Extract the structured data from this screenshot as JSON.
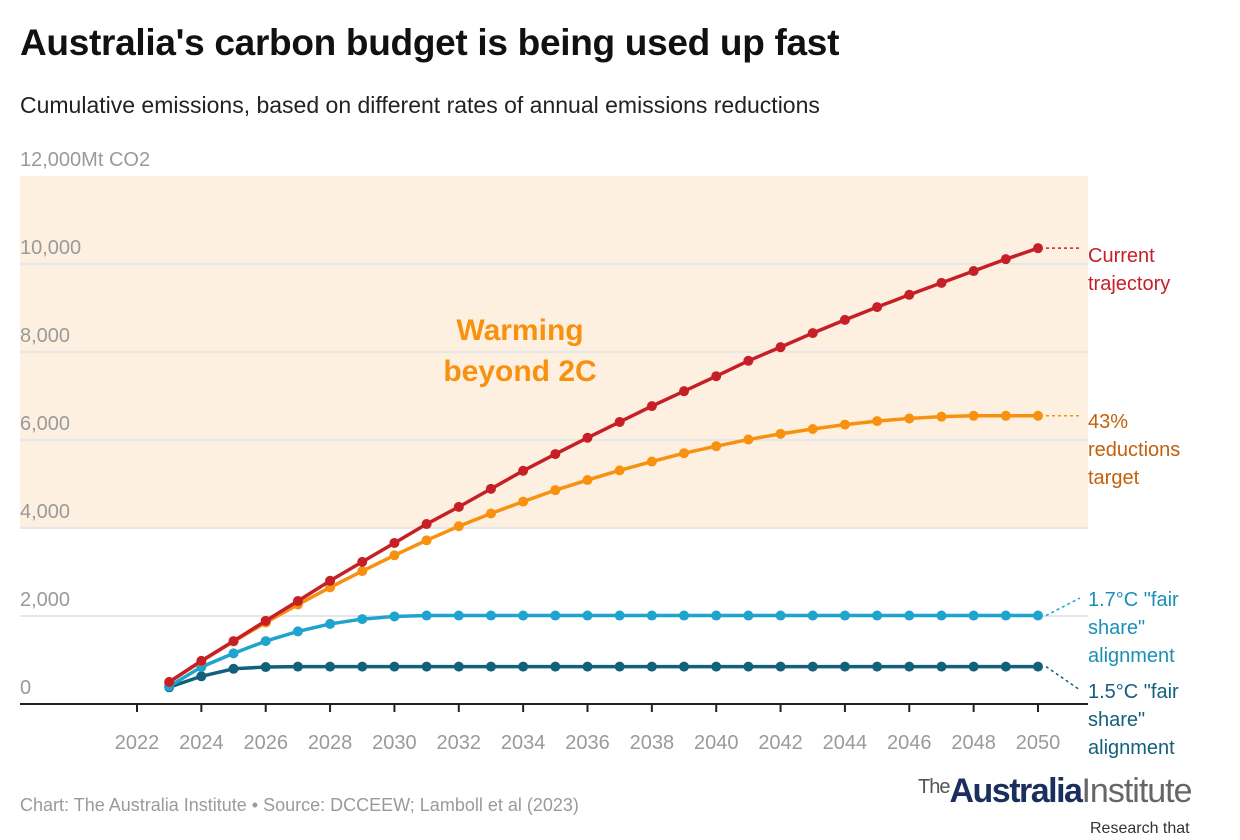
{
  "title": "Australia's carbon budget is being used up fast",
  "subtitle": "Cumulative emissions, based on different rates of annual emissions reductions",
  "source": "Chart: The Australia Institute • Source: DCCEEW; Lamboll et al (2023)",
  "logo": {
    "the": "The",
    "australia": "Australia",
    "institute": "Institute",
    "tagline": "Research that matters."
  },
  "chart_data": {
    "type": "line",
    "title": "Australia's carbon budget is being used up fast",
    "ylabel": "Mt CO2",
    "ylim": [
      0,
      12000
    ],
    "xlim": [
      2022,
      2050
    ],
    "grid": true,
    "y_ticks": [
      "0",
      "2,000",
      "4,000",
      "6,000",
      "8,000",
      "10,000",
      "12,000Mt CO2"
    ],
    "y_tick_values": [
      0,
      2000,
      4000,
      6000,
      8000,
      10000,
      12000
    ],
    "x_ticks": [
      2022,
      2024,
      2026,
      2028,
      2030,
      2032,
      2034,
      2036,
      2038,
      2040,
      2042,
      2044,
      2046,
      2048,
      2050
    ],
    "band": {
      "from": 4000,
      "to": 12000,
      "label": "Warming beyond 2C",
      "color": "#fdf0e1",
      "label_color": "#f7910f"
    },
    "x": [
      2023,
      2024,
      2025,
      2026,
      2027,
      2028,
      2029,
      2030,
      2031,
      2032,
      2033,
      2034,
      2035,
      2036,
      2037,
      2038,
      2039,
      2040,
      2041,
      2042,
      2043,
      2044,
      2045,
      2046,
      2047,
      2048,
      2049,
      2050
    ],
    "series": [
      {
        "name": "Current trajectory",
        "color": "#c62026",
        "label_color": "#c62026",
        "values": [
          500,
          980,
          1430,
          1890,
          2340,
          2800,
          3230,
          3660,
          4090,
          4480,
          4890,
          5300,
          5680,
          6050,
          6410,
          6770,
          7110,
          7450,
          7800,
          8110,
          8430,
          8730,
          9020,
          9300,
          9570,
          9840,
          10110,
          10360
        ]
      },
      {
        "name": "43% reductions target",
        "color": "#f7910f",
        "label_color": "#c2600c",
        "values": [
          500,
          970,
          1420,
          1850,
          2260,
          2650,
          3020,
          3380,
          3720,
          4040,
          4330,
          4600,
          4860,
          5090,
          5310,
          5510,
          5700,
          5860,
          6010,
          6140,
          6250,
          6350,
          6430,
          6490,
          6530,
          6550,
          6550,
          6550
        ]
      },
      {
        "name": "1.7°C \"fair share\" alignment",
        "color": "#1fa3cf",
        "label_color": "#1b8fb8",
        "values": [
          400,
          840,
          1150,
          1430,
          1650,
          1820,
          1930,
          1990,
          2010,
          2010,
          2010,
          2010,
          2010,
          2010,
          2010,
          2010,
          2010,
          2010,
          2010,
          2010,
          2010,
          2010,
          2010,
          2010,
          2010,
          2010,
          2010,
          2010
        ]
      },
      {
        "name": "1.5°C \"fair share\" alignment",
        "color": "#13607c",
        "label_color": "#13607c",
        "values": [
          380,
          630,
          800,
          840,
          850,
          850,
          850,
          850,
          850,
          850,
          850,
          850,
          850,
          850,
          850,
          850,
          850,
          850,
          850,
          850,
          850,
          850,
          850,
          850,
          850,
          850,
          850,
          850
        ]
      }
    ],
    "series_labels": [
      [
        "Current",
        "trajectory"
      ],
      [
        "43%",
        "reductions",
        "target"
      ],
      [
        "1.7°C \"fair",
        "share\"",
        "alignment"
      ],
      [
        "1.5°C \"fair",
        "share\"",
        "alignment"
      ]
    ],
    "band_label_lines": [
      "Warming",
      "beyond 2C"
    ]
  }
}
